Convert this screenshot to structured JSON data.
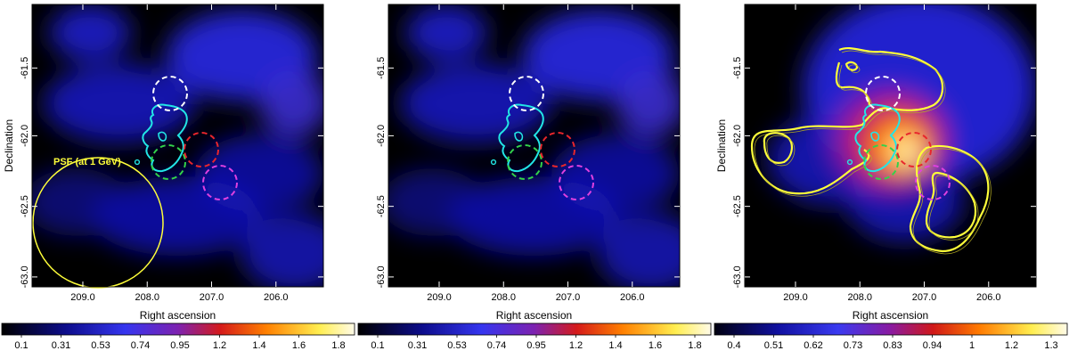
{
  "figure": {
    "panels": [
      {
        "id": "left",
        "xlabel": "Right ascension",
        "ylabel": "Declination",
        "xticks": [
          "209.0",
          "208.0",
          "207.0",
          "206.0"
        ],
        "yticks": [
          "-61.5",
          "-62.0",
          "-62.5",
          "-63.0"
        ],
        "annotation": "PSF (at 1 GeV)",
        "colorbar_ticks": [
          "0.1",
          "0.31",
          "0.53",
          "0.74",
          "0.95",
          "1.2",
          "1.4",
          "1.6",
          "1.8"
        ],
        "colormap": "b",
        "blobs": [
          {
            "x": 0.2,
            "y": 0.1,
            "rx": 0.14,
            "ry": 0.1,
            "c": "#1d1dd6",
            "o": 0.85
          },
          {
            "x": 0.72,
            "y": 0.18,
            "rx": 0.26,
            "ry": 0.16,
            "c": "#2a2ae6",
            "o": 0.9
          },
          {
            "x": 0.9,
            "y": 0.35,
            "rx": 0.12,
            "ry": 0.12,
            "c": "#3a2ccf",
            "o": 0.9
          },
          {
            "x": 0.3,
            "y": 0.35,
            "rx": 0.26,
            "ry": 0.14,
            "c": "#1717c8",
            "o": 0.85
          },
          {
            "x": 0.78,
            "y": 0.6,
            "rx": 0.22,
            "ry": 0.14,
            "c": "#1010b8",
            "o": 0.8
          },
          {
            "x": 0.5,
            "y": 0.75,
            "rx": 0.3,
            "ry": 0.14,
            "c": "#1414c0",
            "o": 0.8
          },
          {
            "x": 0.9,
            "y": 0.88,
            "rx": 0.18,
            "ry": 0.14,
            "c": "#1b1bc8",
            "o": 0.8
          },
          {
            "x": 0.15,
            "y": 0.7,
            "rx": 0.18,
            "ry": 0.12,
            "c": "#0d0d9e",
            "o": 0.7
          }
        ],
        "show_psf": true,
        "show_yellow_contours": false
      },
      {
        "id": "middle",
        "xlabel": "Right ascension",
        "ylabel": "",
        "xticks": [
          "209.0",
          "208.0",
          "207.0",
          "206.0"
        ],
        "yticks": [
          "-61.5",
          "-62.0",
          "-62.5",
          "-63.0"
        ],
        "annotation": "",
        "colorbar_ticks": [
          "0.1",
          "0.31",
          "0.53",
          "0.74",
          "0.95",
          "1.2",
          "1.4",
          "1.6",
          "1.8"
        ],
        "colormap": "b",
        "blobs": [
          {
            "x": 0.2,
            "y": 0.1,
            "rx": 0.14,
            "ry": 0.1,
            "c": "#1d1dd6",
            "o": 0.85
          },
          {
            "x": 0.72,
            "y": 0.18,
            "rx": 0.26,
            "ry": 0.16,
            "c": "#2a2ae6",
            "o": 0.9
          },
          {
            "x": 0.9,
            "y": 0.35,
            "rx": 0.12,
            "ry": 0.12,
            "c": "#3a2ccf",
            "o": 0.9
          },
          {
            "x": 0.3,
            "y": 0.35,
            "rx": 0.26,
            "ry": 0.14,
            "c": "#1717c8",
            "o": 0.85
          },
          {
            "x": 0.78,
            "y": 0.6,
            "rx": 0.22,
            "ry": 0.14,
            "c": "#1010b8",
            "o": 0.8
          },
          {
            "x": 0.5,
            "y": 0.75,
            "rx": 0.3,
            "ry": 0.14,
            "c": "#1414c0",
            "o": 0.8
          },
          {
            "x": 0.9,
            "y": 0.88,
            "rx": 0.18,
            "ry": 0.14,
            "c": "#1b1bc8",
            "o": 0.8
          },
          {
            "x": 0.15,
            "y": 0.7,
            "rx": 0.18,
            "ry": 0.12,
            "c": "#0d0d9e",
            "o": 0.7
          }
        ],
        "show_psf": false,
        "show_yellow_contours": false
      },
      {
        "id": "right",
        "xlabel": "Right ascension",
        "ylabel": "Declination",
        "xticks": [
          "209.0",
          "208.0",
          "207.0",
          "206.0"
        ],
        "yticks": [
          "-61.5",
          "-62.0",
          "-62.5",
          "-63.0"
        ],
        "annotation": "",
        "colorbar_ticks": [
          "0.4",
          "0.51",
          "0.62",
          "0.73",
          "0.83",
          "0.94",
          "1",
          "1.2",
          "1.3"
        ],
        "colormap": "c",
        "blobs": [
          {
            "x": 0.6,
            "y": 0.3,
            "rx": 0.4,
            "ry": 0.34,
            "c": "#2424d8",
            "o": 0.95
          },
          {
            "x": 0.3,
            "y": 0.55,
            "rx": 0.22,
            "ry": 0.16,
            "c": "#1a1ac4",
            "o": 0.85
          },
          {
            "x": 0.55,
            "y": 0.7,
            "rx": 0.2,
            "ry": 0.14,
            "c": "#1a1ac4",
            "o": 0.85
          },
          {
            "x": 0.5,
            "y": 0.48,
            "rx": 0.2,
            "ry": 0.18,
            "c": "#8a1aa0",
            "o": 0.95
          },
          {
            "x": 0.52,
            "y": 0.49,
            "rx": 0.15,
            "ry": 0.14,
            "c": "#e01010",
            "o": 0.95
          },
          {
            "x": 0.53,
            "y": 0.5,
            "rx": 0.1,
            "ry": 0.1,
            "c": "#ff8a00",
            "o": 0.95
          },
          {
            "x": 0.55,
            "y": 0.52,
            "rx": 0.06,
            "ry": 0.06,
            "c": "#ffee60",
            "o": 0.95
          },
          {
            "x": 0.56,
            "y": 0.52,
            "rx": 0.03,
            "ry": 0.03,
            "c": "#fffbe0",
            "o": 1.0
          }
        ],
        "show_psf": false,
        "show_yellow_contours": true
      }
    ]
  },
  "colors": {
    "cyan_contour": "#22e6e6",
    "white_circle": "#ffffff",
    "red_circle": "#e8262c",
    "green_circle": "#33d24a",
    "magenta_circle": "#e040e0",
    "yellow": "#ffff3a",
    "psf": "#ffff3a"
  }
}
